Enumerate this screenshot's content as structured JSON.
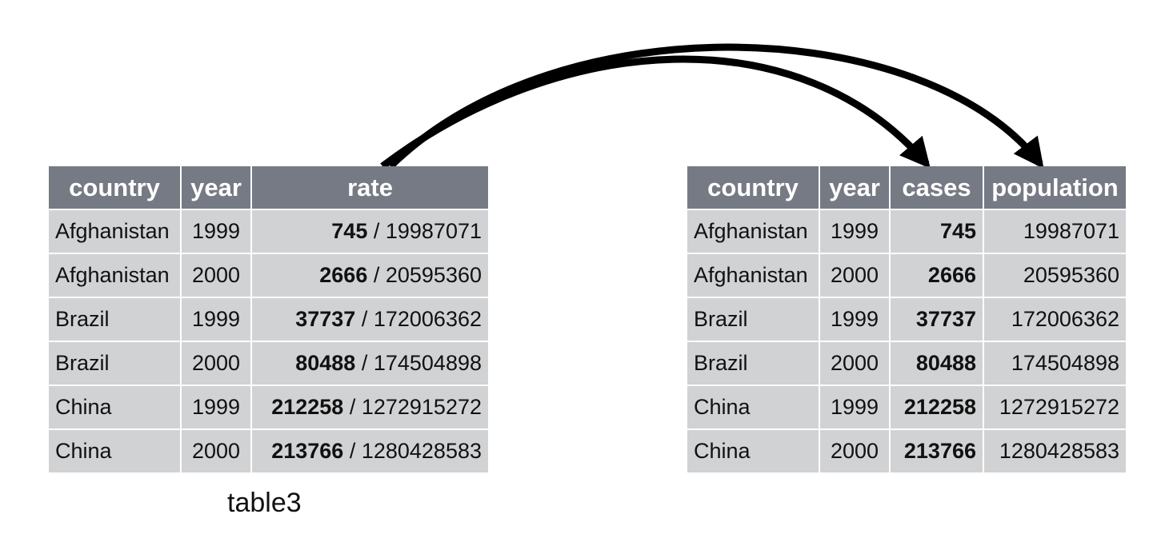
{
  "left_table": {
    "caption": "table3",
    "headers": [
      "country",
      "year",
      "rate"
    ],
    "rows": [
      {
        "country": "Afghanistan",
        "year": "1999",
        "cases": "745",
        "sep": " / ",
        "population": "19987071"
      },
      {
        "country": "Afghanistan",
        "year": "2000",
        "cases": "2666",
        "sep": " / ",
        "population": "20595360"
      },
      {
        "country": "Brazil",
        "year": "1999",
        "cases": "37737",
        "sep": " / ",
        "population": "172006362"
      },
      {
        "country": "Brazil",
        "year": "2000",
        "cases": "80488",
        "sep": " / ",
        "population": "174504898"
      },
      {
        "country": "China",
        "year": "1999",
        "cases": "212258",
        "sep": " / ",
        "population": "1272915272"
      },
      {
        "country": "China",
        "year": "2000",
        "cases": "213766",
        "sep": " / ",
        "population": "1280428583"
      }
    ]
  },
  "right_table": {
    "headers": [
      "country",
      "year",
      "cases",
      "population"
    ],
    "rows": [
      {
        "country": "Afghanistan",
        "year": "1999",
        "cases": "745",
        "population": "19987071"
      },
      {
        "country": "Afghanistan",
        "year": "2000",
        "cases": "2666",
        "population": "20595360"
      },
      {
        "country": "Brazil",
        "year": "1999",
        "cases": "37737",
        "population": "172006362"
      },
      {
        "country": "Brazil",
        "year": "2000",
        "cases": "80488",
        "population": "174504898"
      },
      {
        "country": "China",
        "year": "1999",
        "cases": "212258",
        "population": "1272915272"
      },
      {
        "country": "China",
        "year": "2000",
        "cases": "213766",
        "population": "1280428583"
      }
    ]
  },
  "colors": {
    "header_bg": "#767a84",
    "cell_bg": "#d1d2d4",
    "arrow": "#000000"
  }
}
